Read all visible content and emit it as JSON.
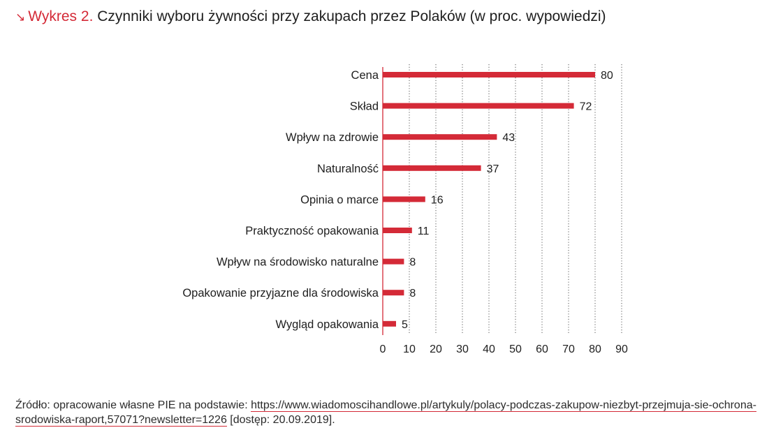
{
  "header": {
    "arrow_icon": "arrow-down-right-icon",
    "label": "Wykres 2.",
    "title": "Czynniki wyboru żywności przy zakupach przez Polaków (w proc. wypowiedzi)"
  },
  "chart_data": {
    "type": "bar",
    "orientation": "horizontal",
    "title": "Czynniki wyboru żywności przy zakupach przez Polaków (w proc. wypowiedzi)",
    "categories": [
      "Cena",
      "Skład",
      "Wpływ na zdrowie",
      "Naturalność",
      "Opinia o marce",
      "Praktyczność opakowania",
      "Wpływ na środowisko naturalne",
      "Opakowanie przyjazne dla środowiska",
      "Wygląd opakowania"
    ],
    "values": [
      80,
      72,
      43,
      37,
      16,
      11,
      8,
      8,
      5
    ],
    "xlim": [
      0,
      90
    ],
    "xticks": [
      0,
      10,
      20,
      30,
      40,
      50,
      60,
      70,
      80,
      90
    ],
    "grid": "vertical dotted",
    "bar_color": "#d42a37",
    "data_labels": true
  },
  "source": {
    "prefix": "Źródło: opracowanie własne PIE na podstawie: ",
    "link": "https://www.wiadomoscihandlowe.pl/artykuly/polacy-podczas-zakupow-niezbyt-przejmuja-sie-ochrona-srodowiska-raport,57071?newsletter=1226",
    "suffix": " [dostęp: 20.09.2019]."
  },
  "colors": {
    "accent": "#d42a37",
    "text": "#1e1e1e",
    "grid": "#666666"
  }
}
